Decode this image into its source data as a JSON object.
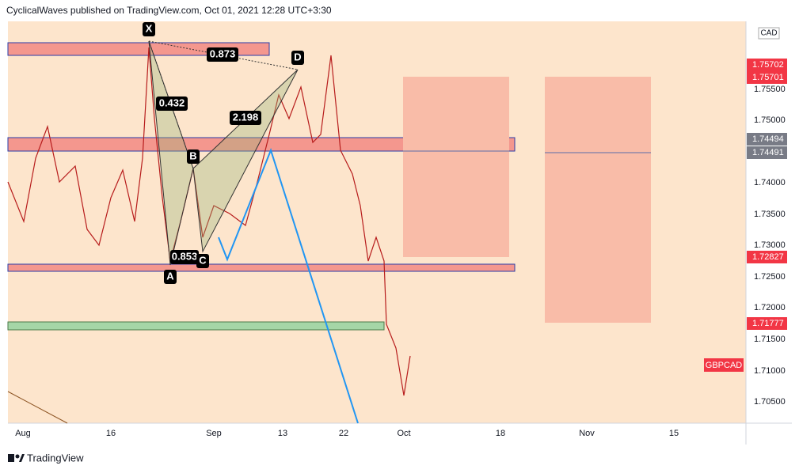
{
  "header": {
    "text": "CyclicalWaves published on TradingView.com, Oct 01, 2021 12:28 UTC+3:30"
  },
  "price_axis": {
    "currency": "CAD",
    "ticks": [
      "1.75500",
      "1.75000",
      "1.74000",
      "1.73500",
      "1.73000",
      "1.72500",
      "1.72000",
      "1.71500",
      "1.71000",
      "1.70500"
    ]
  },
  "price_tags": [
    "1.75702",
    "1.75701",
    "1.74494",
    "1.74491",
    "1.72827",
    "1.71777"
  ],
  "symbol_tag": "GBPCAD",
  "time_axis": [
    "Aug",
    "16",
    "Sep",
    "13",
    "22",
    "Oct",
    "18",
    "Nov",
    "15"
  ],
  "pattern": {
    "points": [
      "X",
      "A",
      "B",
      "C",
      "D"
    ],
    "ratios": [
      "0.873",
      "0.432",
      "2.198",
      "0.853"
    ]
  },
  "footer": {
    "logo_text": "TradingView"
  }
}
